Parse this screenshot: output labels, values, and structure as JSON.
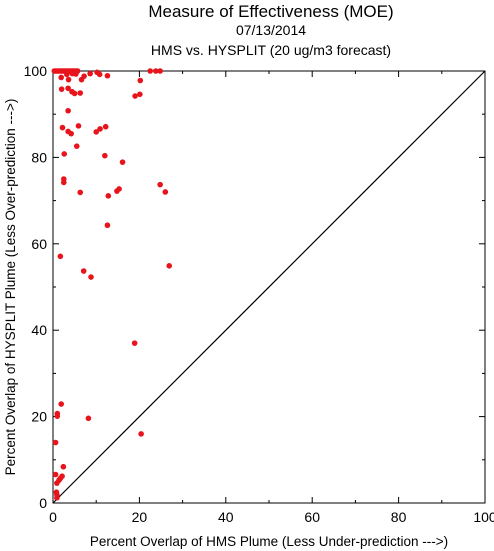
{
  "chart_data": {
    "type": "scatter",
    "title": "Measure of Effectiveness (MOE)",
    "subtitle_date": "07/13/2014",
    "subtitle_compare": "HMS vs. HYSPLIT  (20 ug/m3 forecast)",
    "xlabel": "Percent Overlap of HMS Plume (Less Under-prediction --->)",
    "ylabel": "Percent Overlap of HYSPLIT Plume (Less Over-prediction --->)",
    "xlim": [
      0,
      100
    ],
    "ylim": [
      0,
      100
    ],
    "xticks": [
      "0",
      "20",
      "40",
      "60",
      "80",
      "100"
    ],
    "yticks": [
      "0",
      "20",
      "40",
      "60",
      "80",
      "100"
    ],
    "grid": false,
    "reference_line": "diagonal y = x",
    "point_color": "#e8141c",
    "points": [
      {
        "x": 0.3,
        "y": 100
      },
      {
        "x": 0.6,
        "y": 100
      },
      {
        "x": 0.9,
        "y": 100
      },
      {
        "x": 1.2,
        "y": 100
      },
      {
        "x": 1.5,
        "y": 100
      },
      {
        "x": 1.8,
        "y": 100
      },
      {
        "x": 2.1,
        "y": 100
      },
      {
        "x": 2.4,
        "y": 100
      },
      {
        "x": 2.7,
        "y": 100
      },
      {
        "x": 3.0,
        "y": 100
      },
      {
        "x": 3.3,
        "y": 100
      },
      {
        "x": 3.6,
        "y": 100
      },
      {
        "x": 3.9,
        "y": 100
      },
      {
        "x": 4.2,
        "y": 100
      },
      {
        "x": 4.5,
        "y": 100
      },
      {
        "x": 4.8,
        "y": 100
      },
      {
        "x": 5.1,
        "y": 100
      },
      {
        "x": 5.4,
        "y": 100
      },
      {
        "x": 5.7,
        "y": 100
      },
      {
        "x": 22.5,
        "y": 100
      },
      {
        "x": 23.8,
        "y": 100
      },
      {
        "x": 24.8,
        "y": 100
      },
      {
        "x": 3.2,
        "y": 99.2
      },
      {
        "x": 4.5,
        "y": 99.4
      },
      {
        "x": 5.3,
        "y": 99.3
      },
      {
        "x": 7.2,
        "y": 98.8
      },
      {
        "x": 8.6,
        "y": 99.4
      },
      {
        "x": 10.2,
        "y": 99.7
      },
      {
        "x": 10.8,
        "y": 99.2
      },
      {
        "x": 12.6,
        "y": 98.9
      },
      {
        "x": 1.9,
        "y": 98.5
      },
      {
        "x": 3.6,
        "y": 98.0
      },
      {
        "x": 6.6,
        "y": 98.0
      },
      {
        "x": 20.2,
        "y": 97.8
      },
      {
        "x": 2.0,
        "y": 95.8
      },
      {
        "x": 3.5,
        "y": 96.0
      },
      {
        "x": 4.4,
        "y": 95.2
      },
      {
        "x": 5.0,
        "y": 94.8
      },
      {
        "x": 6.3,
        "y": 94.9
      },
      {
        "x": 19.0,
        "y": 94.2
      },
      {
        "x": 20.1,
        "y": 94.6
      },
      {
        "x": 3.5,
        "y": 90.8
      },
      {
        "x": 2.2,
        "y": 86.9
      },
      {
        "x": 3.5,
        "y": 86.0
      },
      {
        "x": 4.2,
        "y": 85.5
      },
      {
        "x": 5.9,
        "y": 87.3
      },
      {
        "x": 10.0,
        "y": 85.9
      },
      {
        "x": 10.9,
        "y": 86.6
      },
      {
        "x": 12.2,
        "y": 87.1
      },
      {
        "x": 5.5,
        "y": 82.6
      },
      {
        "x": 2.6,
        "y": 80.8
      },
      {
        "x": 12.0,
        "y": 80.4
      },
      {
        "x": 16.1,
        "y": 78.9
      },
      {
        "x": 2.5,
        "y": 75.0
      },
      {
        "x": 2.5,
        "y": 74.2
      },
      {
        "x": 24.8,
        "y": 73.7
      },
      {
        "x": 15.3,
        "y": 72.7
      },
      {
        "x": 14.8,
        "y": 72.2
      },
      {
        "x": 6.3,
        "y": 71.9
      },
      {
        "x": 26.0,
        "y": 72.0
      },
      {
        "x": 12.8,
        "y": 71.1
      },
      {
        "x": 12.6,
        "y": 64.3
      },
      {
        "x": 1.7,
        "y": 57.1
      },
      {
        "x": 26.9,
        "y": 54.9
      },
      {
        "x": 7.1,
        "y": 53.7
      },
      {
        "x": 8.8,
        "y": 52.3
      },
      {
        "x": 18.9,
        "y": 37.0
      },
      {
        "x": 1.9,
        "y": 22.9
      },
      {
        "x": 1.0,
        "y": 20.7
      },
      {
        "x": 1.0,
        "y": 20.1
      },
      {
        "x": 8.2,
        "y": 19.6
      },
      {
        "x": 20.4,
        "y": 16.0
      },
      {
        "x": 0.6,
        "y": 14.0
      },
      {
        "x": 2.4,
        "y": 8.4
      },
      {
        "x": 0.6,
        "y": 6.6
      },
      {
        "x": 2.1,
        "y": 6.2
      },
      {
        "x": 1.7,
        "y": 5.7
      },
      {
        "x": 1.4,
        "y": 5.3
      },
      {
        "x": 0.9,
        "y": 4.6
      },
      {
        "x": 0.8,
        "y": 2.5
      },
      {
        "x": 0.9,
        "y": 1.9
      },
      {
        "x": 0.9,
        "y": 1.2
      }
    ]
  }
}
